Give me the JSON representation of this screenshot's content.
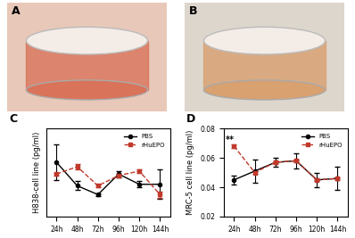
{
  "images": [
    {
      "label": "A"
    },
    {
      "label": "B"
    }
  ],
  "chart_data": [
    {
      "type": "line",
      "panel": "C",
      "y_label": "H838-cell line (pg/ml)",
      "categories": [
        "24h",
        "48h",
        "72h",
        "96h",
        "120h",
        "144h"
      ],
      "ylim": [
        0.0,
        0.3
      ],
      "tick_labels": "x",
      "legend": "upper right",
      "series": [
        {
          "name": "PBS",
          "color": "#000000",
          "marker": "o",
          "line_style": "solid",
          "values": [
            0.185,
            0.105,
            0.075,
            0.145,
            0.11,
            0.11
          ],
          "errors": [
            0.06,
            0.015,
            0.005,
            0.01,
            0.01,
            0.05
          ]
        },
        {
          "name": "rHuEPO",
          "color": "#c0392b",
          "marker": "s",
          "line_style": "dashed",
          "values": [
            0.145,
            0.17,
            0.105,
            0.14,
            0.155,
            0.075
          ],
          "errors": [
            0.005,
            0.01,
            0.005,
            0.005,
            0.005,
            0.01
          ]
        }
      ]
    },
    {
      "type": "line",
      "panel": "D",
      "y_label": "MRC-5 cell line (pg/ml)",
      "categories": [
        "24h",
        "48h",
        "72h",
        "96h",
        "120h",
        "144h"
      ],
      "ylim": [
        0.02,
        0.08
      ],
      "yticks": [
        0.02,
        0.04,
        0.06,
        0.08
      ],
      "legend": "upper right",
      "annotations": [
        {
          "text": "**",
          "category": "24h",
          "y": 0.069
        }
      ],
      "series": [
        {
          "name": "PBS",
          "color": "#000000",
          "marker": "o",
          "line_style": "solid",
          "values": [
            0.045,
            0.051,
            0.057,
            0.058,
            0.045,
            0.046
          ],
          "errors": [
            0.003,
            0.008,
            0.003,
            0.005,
            0.005,
            0.008
          ]
        },
        {
          "name": "rHuEPO",
          "color": "#c0392b",
          "marker": "s",
          "line_style": "dashed",
          "values": [
            0.068,
            0.05,
            0.057,
            0.058,
            0.045,
            0.046
          ],
          "errors": [
            0.001,
            0.001,
            0.001,
            0.001,
            0.001,
            0.001
          ]
        }
      ]
    }
  ]
}
